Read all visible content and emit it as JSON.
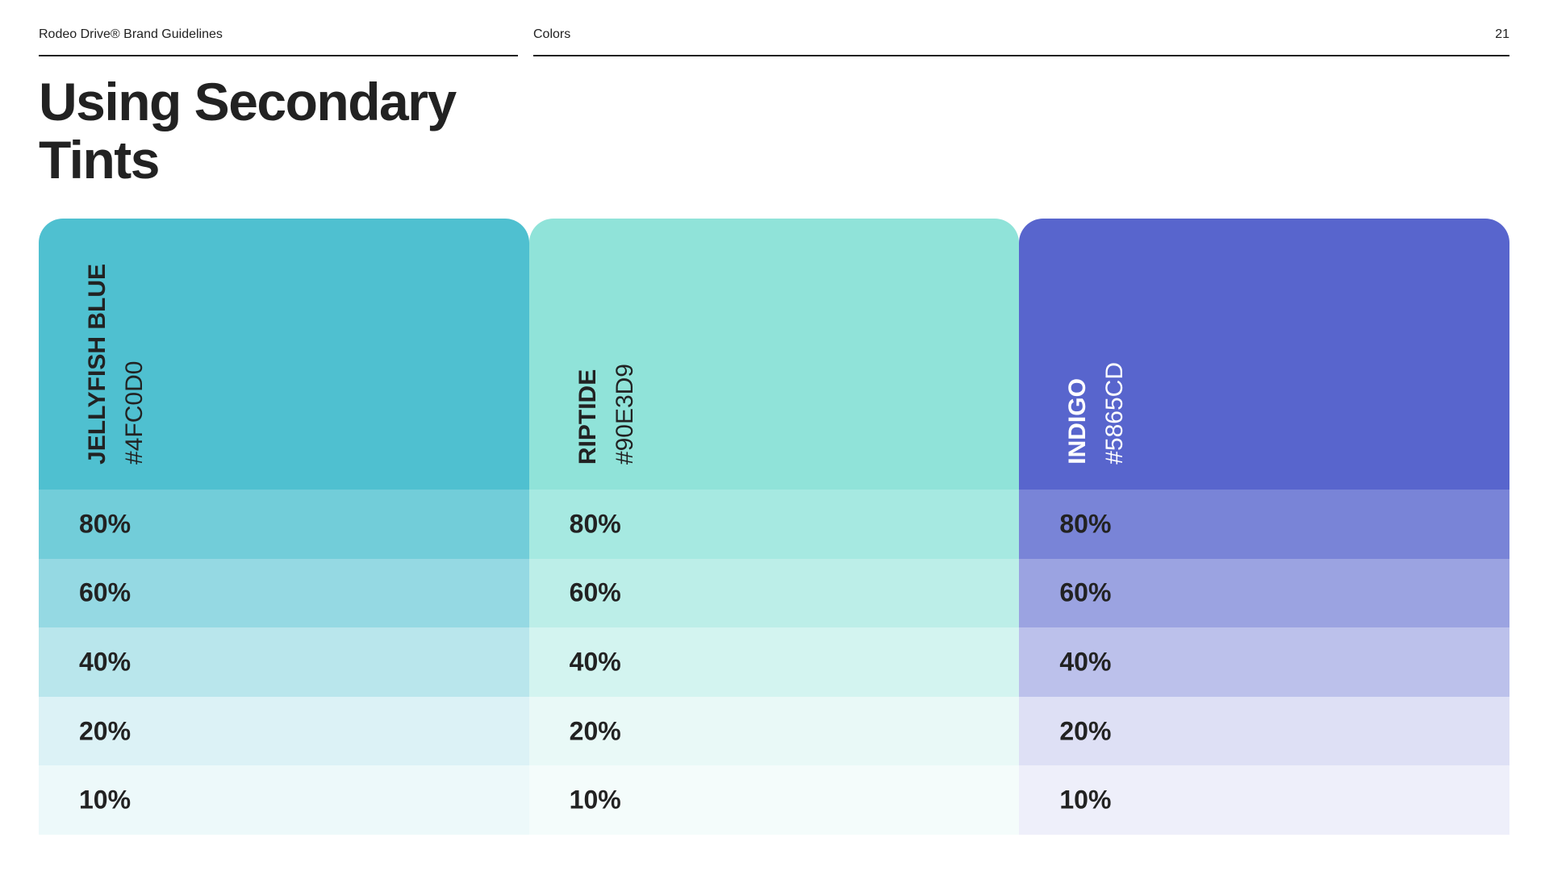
{
  "header": {
    "left": "Rodeo Drive® Brand Guidelines",
    "section": "Colors",
    "page": "21"
  },
  "title": "Using Secondary Tints",
  "swatches": [
    {
      "name": "JELLYFISH BLUE",
      "hex": "#4FC0D0",
      "tints": [
        "80%",
        "60%",
        "40%",
        "20%",
        "10%"
      ]
    },
    {
      "name": "RIPTIDE",
      "hex": "#90E3D9",
      "tints": [
        "80%",
        "60%",
        "40%",
        "20%",
        "10%"
      ]
    },
    {
      "name": "INDIGO",
      "hex": "#5865CD",
      "tints": [
        "80%",
        "60%",
        "40%",
        "20%",
        "10%"
      ]
    }
  ]
}
